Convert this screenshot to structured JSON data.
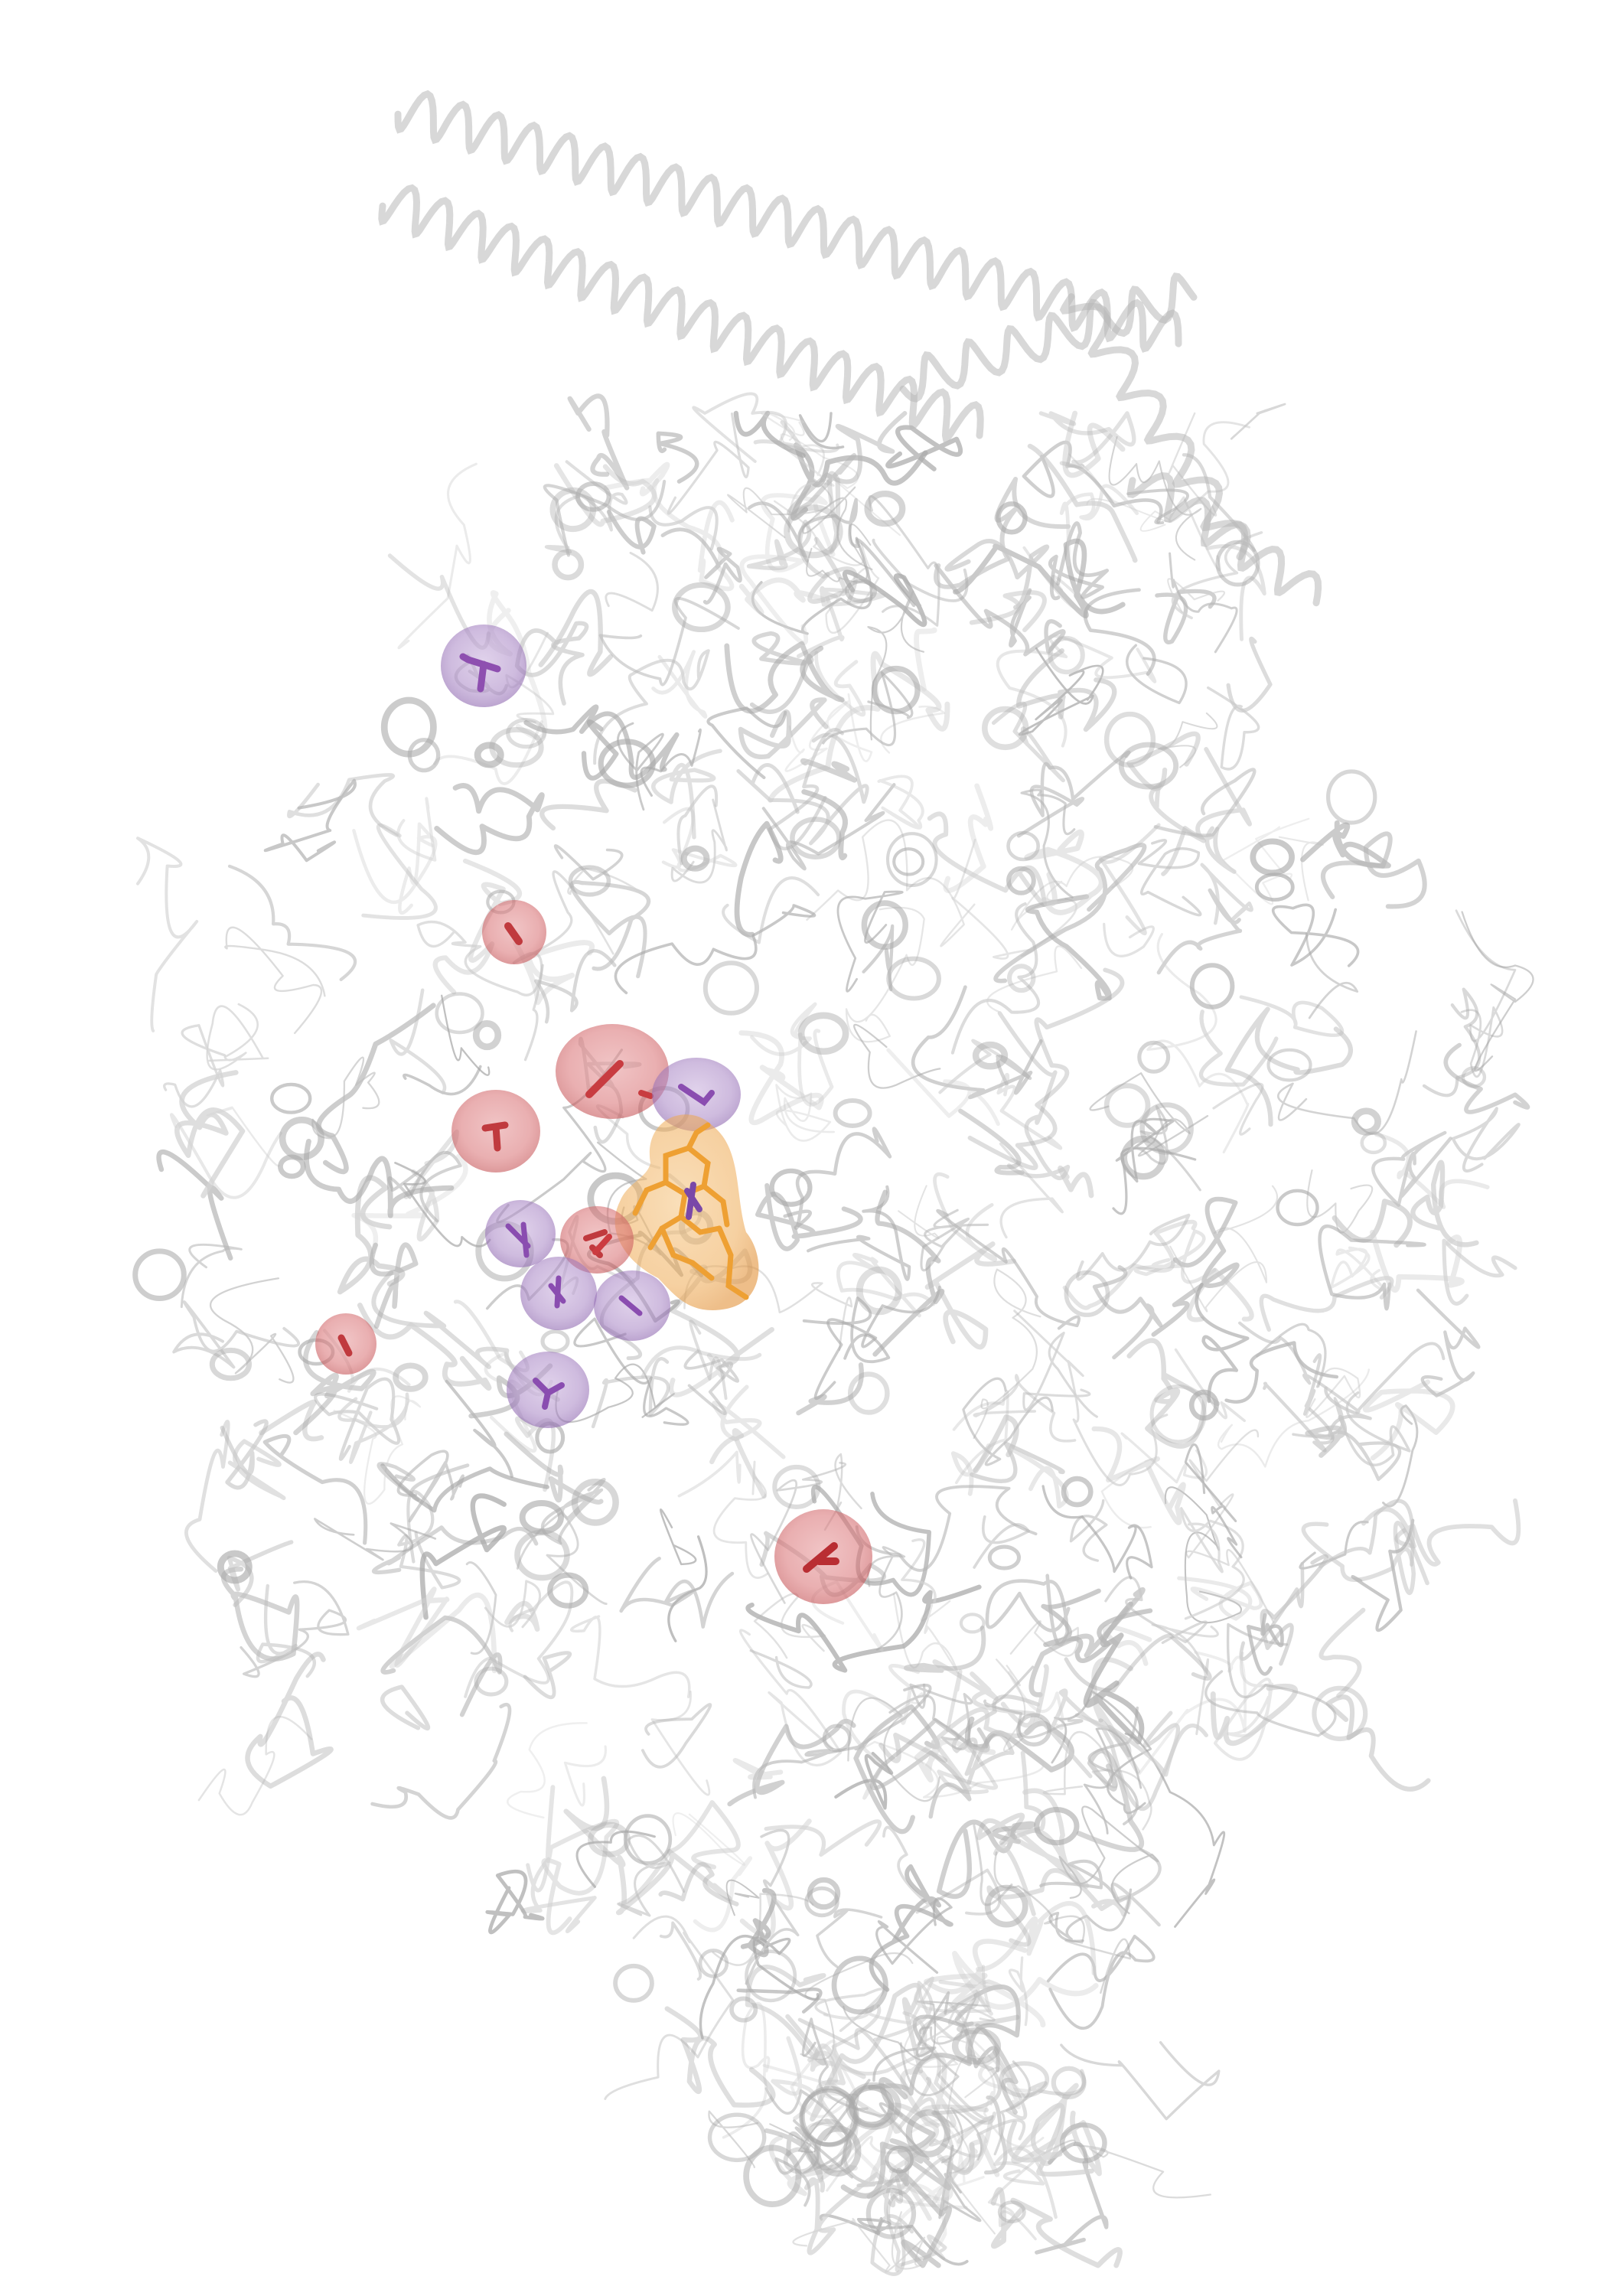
{
  "scene": {
    "subject": "protein-ribbon-structure",
    "background_color": "#ffffff",
    "colors": {
      "ribbon": "#bdbdbd",
      "ribbon_shadow": "#9a9a9a",
      "ligand": "#f0a030",
      "ligand_surface": "#f2b04a",
      "acidic_residue": "#d0575a",
      "acidic_surface": "#e08a8c",
      "polar_residue": "#8e63b0",
      "polar_surface": "#b796d0"
    },
    "legend": []
  }
}
